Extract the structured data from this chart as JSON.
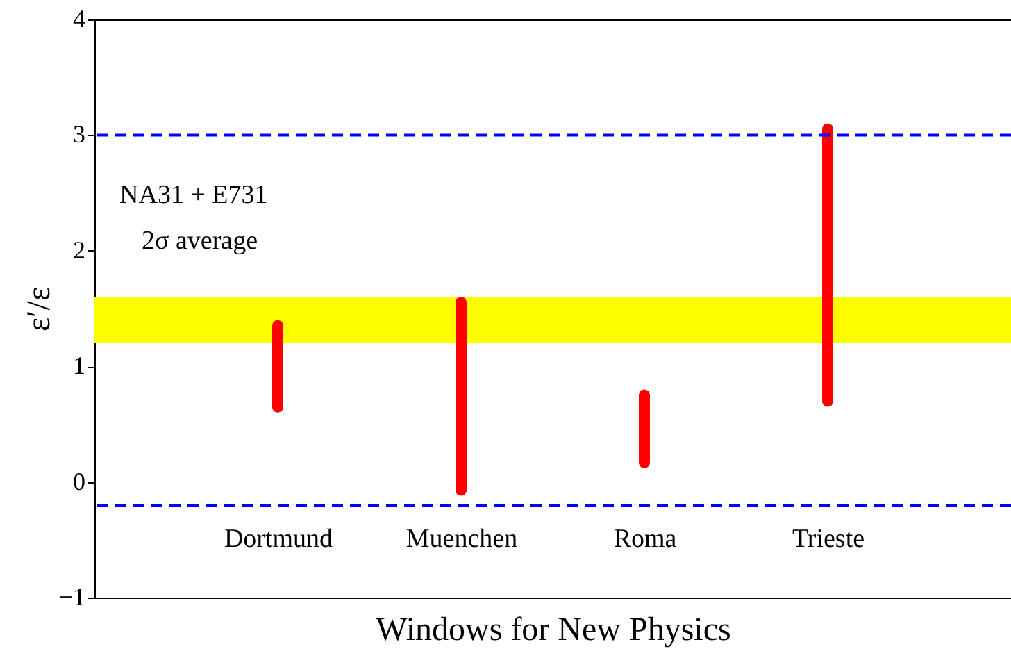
{
  "chart_data": {
    "type": "bar",
    "categories": [
      "Dortmund",
      "Muenchen",
      "Roma",
      "Trieste"
    ],
    "series": [
      {
        "color": "#ff0000",
        "values": [
          0.8,
          1.72,
          0.68,
          2.45
        ],
        "base": [
          0.6,
          -0.12,
          0.12,
          0.65
        ]
      }
    ],
    "xlabel": "Windows for New Physics",
    "ylabel": "ε′/ε",
    "ylim": [
      -1,
      4
    ],
    "yticks": [
      -1,
      0,
      1,
      2,
      3,
      4
    ],
    "grid": false,
    "bands": [
      {
        "axis": "y",
        "from": 1.2,
        "to": 1.6,
        "color": "#ffff00"
      }
    ],
    "ref_lines": [
      {
        "axis": "y",
        "value": 3,
        "color": "#0000ff",
        "line_style": "dashed"
      },
      {
        "axis": "y",
        "value": -0.2,
        "color": "#0000ff",
        "line_style": "dashed"
      }
    ],
    "annotations": [
      "NA31 + E731",
      "2σ average"
    ]
  }
}
